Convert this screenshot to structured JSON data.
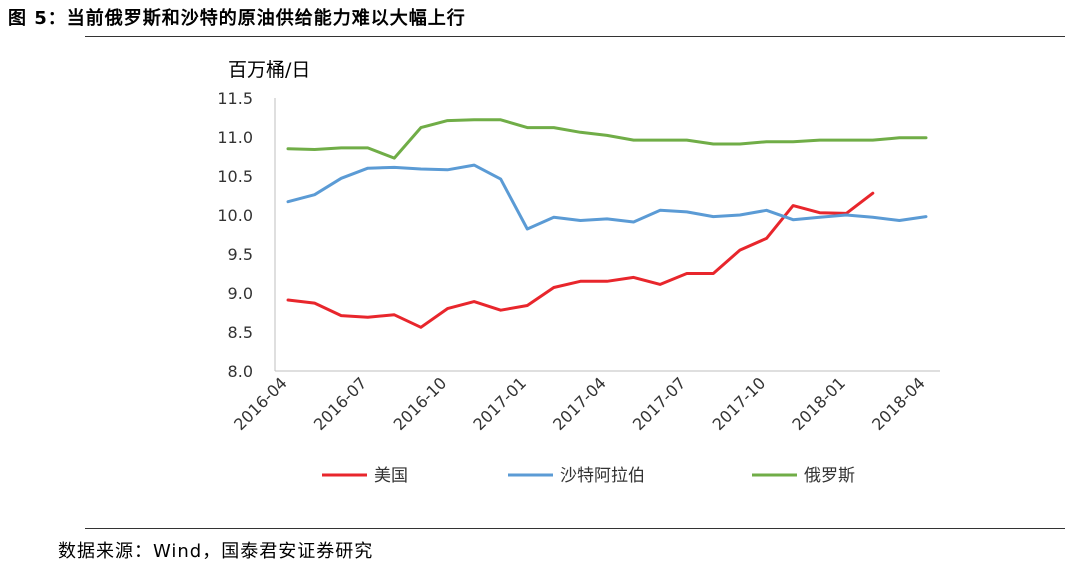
{
  "figure": {
    "title": "图 5：当前俄罗斯和沙特的原油供给能力难以大幅上行",
    "source": "数据来源：Wind，国泰君安证券研究"
  },
  "chart_data": {
    "type": "line",
    "ylabel": "百万桶/日",
    "ylim": [
      8.0,
      11.5
    ],
    "yticks": [
      "8.0",
      "8.5",
      "9.0",
      "9.5",
      "10.0",
      "10.5",
      "11.0",
      "11.5"
    ],
    "x_tick_labels": [
      "2016-04",
      "2016-07",
      "2016-10",
      "2017-01",
      "2017-04",
      "2017-07",
      "2017-10",
      "2018-01",
      "2018-04"
    ],
    "x": [
      "2016-04",
      "2016-05",
      "2016-06",
      "2016-07",
      "2016-08",
      "2016-09",
      "2016-10",
      "2016-11",
      "2016-12",
      "2017-01",
      "2017-02",
      "2017-03",
      "2017-04",
      "2017-05",
      "2017-06",
      "2017-07",
      "2017-08",
      "2017-09",
      "2017-10",
      "2017-11",
      "2017-12",
      "2018-01",
      "2018-02",
      "2018-03",
      "2018-04"
    ],
    "legend_position": "bottom",
    "grid": false,
    "series": [
      {
        "name": "美国",
        "color": "#e8262c",
        "values": [
          8.91,
          8.87,
          8.71,
          8.69,
          8.72,
          8.56,
          8.8,
          8.89,
          8.78,
          8.84,
          9.07,
          9.15,
          9.15,
          9.2,
          9.11,
          9.25,
          9.25,
          9.55,
          9.7,
          10.12,
          10.03,
          10.02,
          10.28,
          null,
          null
        ]
      },
      {
        "name": "沙特阿拉伯",
        "color": "#5b9bd5",
        "values": [
          10.17,
          10.26,
          10.47,
          10.6,
          10.61,
          10.59,
          10.58,
          10.64,
          10.46,
          9.82,
          9.97,
          9.93,
          9.95,
          9.91,
          10.06,
          10.04,
          9.98,
          10.0,
          10.06,
          9.94,
          9.97,
          10.0,
          9.97,
          9.93,
          9.98
        ]
      },
      {
        "name": "俄罗斯",
        "color": "#70ad47",
        "values": [
          10.85,
          10.84,
          10.86,
          10.86,
          10.73,
          11.12,
          11.21,
          11.22,
          11.22,
          11.12,
          11.12,
          11.06,
          11.02,
          10.96,
          10.96,
          10.96,
          10.91,
          10.91,
          10.94,
          10.94,
          10.96,
          10.96,
          10.96,
          10.99,
          10.99
        ]
      }
    ]
  }
}
